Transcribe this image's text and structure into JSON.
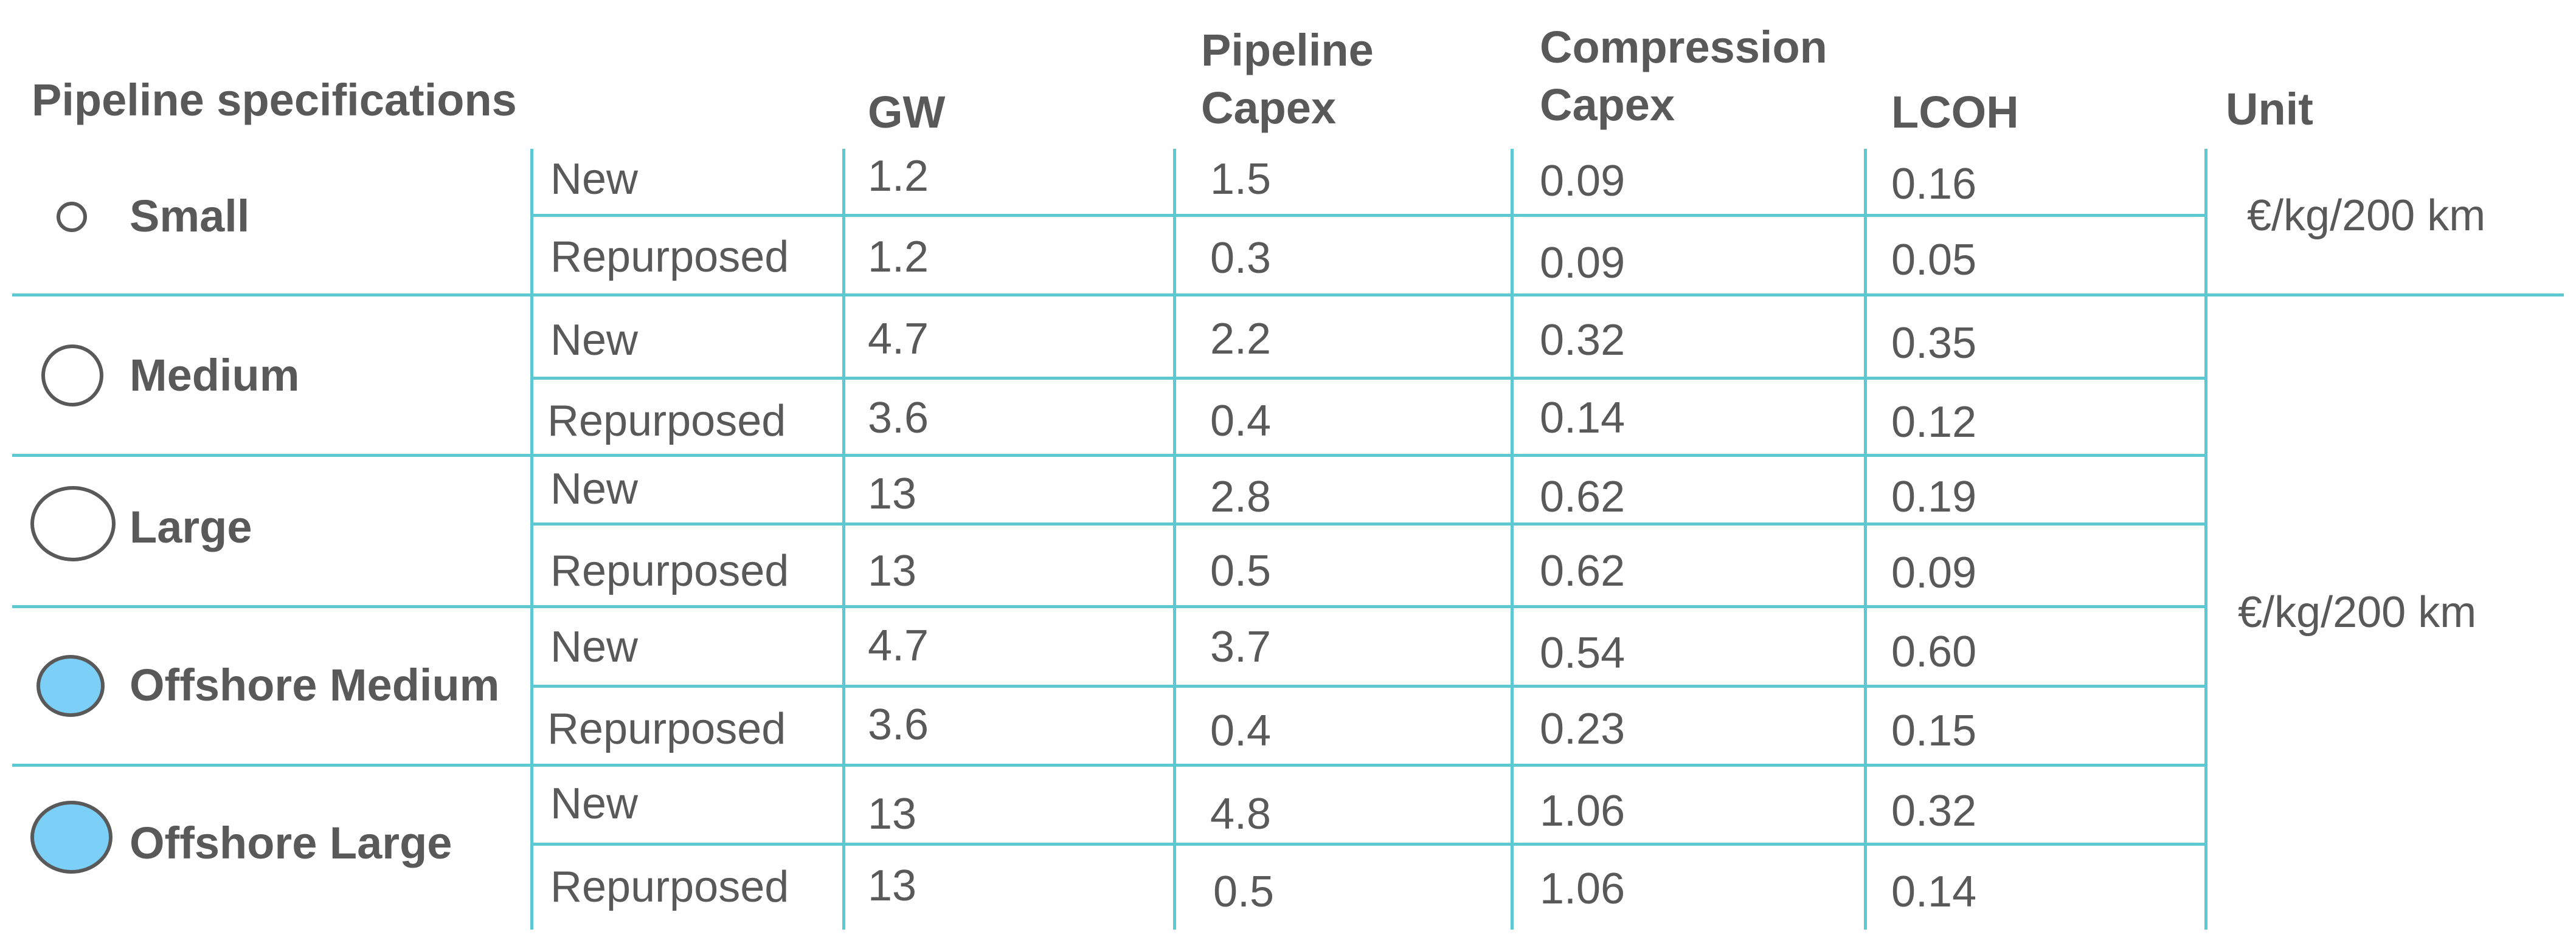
{
  "headers": {
    "spec": "Pipeline specifications",
    "gw": "GW",
    "pipeline_capex_1": "Pipeline",
    "pipeline_capex_2": "Capex",
    "compression_capex_1": "Compression",
    "compression_capex_2": "Capex",
    "lcoh": "LCOH",
    "unit": "Unit"
  },
  "units": {
    "small": "€/kg/200 km",
    "rest": "€/kg/200 km"
  },
  "rows": [
    {
      "size": "Small",
      "type": "New",
      "gw": "1.2",
      "pipeline_capex": "1.5",
      "compression_capex": "0.09",
      "lcoh": "0.16"
    },
    {
      "size": "",
      "type": "Repurposed",
      "gw": "1.2",
      "pipeline_capex": "0.3",
      "compression_capex": "0.09",
      "lcoh": "0.05"
    },
    {
      "size": "Medium",
      "type": "New",
      "gw": "4.7",
      "pipeline_capex": "2.2",
      "compression_capex": "0.32",
      "lcoh": "0.35"
    },
    {
      "size": "",
      "type": "Repurposed",
      "gw": "3.6",
      "pipeline_capex": "0.4",
      "compression_capex": "0.14",
      "lcoh": "0.12"
    },
    {
      "size": "Large",
      "type": "New",
      "gw": "13",
      "pipeline_capex": "2.8",
      "compression_capex": "0.62",
      "lcoh": "0.19"
    },
    {
      "size": "",
      "type": "Repurposed",
      "gw": "13",
      "pipeline_capex": "0.5",
      "compression_capex": "0.62",
      "lcoh": "0.09"
    },
    {
      "size": "Offshore Medium",
      "type": "New",
      "gw": "4.7",
      "pipeline_capex": "3.7",
      "compression_capex": "0.54",
      "lcoh": "0.60"
    },
    {
      "size": "",
      "type": "Repurposed",
      "gw": "3.6",
      "pipeline_capex": "0.4",
      "compression_capex": "0.23",
      "lcoh": "0.15"
    },
    {
      "size": "Offshore Large",
      "type": "New",
      "gw": "13",
      "pipeline_capex": "4.8",
      "compression_capex": "1.06",
      "lcoh": "0.32"
    },
    {
      "size": "",
      "type": "Repurposed",
      "gw": "13",
      "pipeline_capex": "0.5",
      "compression_capex": "1.06",
      "lcoh": "0.14"
    }
  ],
  "colors": {
    "line": "#5cc8d1",
    "text": "#595959",
    "offshore_fill": "#7ccff6"
  }
}
